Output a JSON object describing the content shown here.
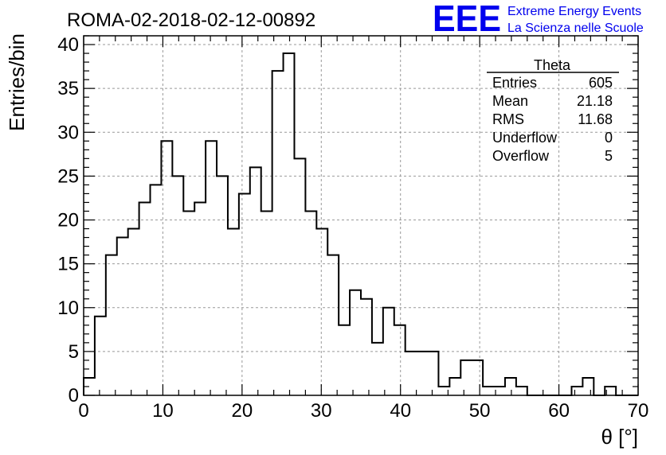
{
  "title": "ROMA-02-2018-02-12-00892",
  "logo": {
    "letters": "EEE",
    "line1": "Extreme Energy Events",
    "line2": "La Scienza nelle Scuole",
    "color": "#0000ee"
  },
  "stats": {
    "name": "Theta",
    "rows": [
      {
        "label": "Entries",
        "value": "605"
      },
      {
        "label": "Mean",
        "value": "21.18"
      },
      {
        "label": "RMS",
        "value": "11.68"
      },
      {
        "label": "Underflow",
        "value": "0"
      },
      {
        "label": "Overflow",
        "value": "5"
      }
    ]
  },
  "chart_data": {
    "type": "bar",
    "style": "step-histogram",
    "xlabel": "θ [°]",
    "ylabel": "Entries/bin",
    "xlim": [
      0,
      70
    ],
    "ylim": [
      0,
      41
    ],
    "bin_width": 1.4,
    "xticks": [
      0,
      10,
      20,
      30,
      40,
      50,
      60,
      70
    ],
    "yticks": [
      0,
      5,
      10,
      15,
      20,
      25,
      30,
      35,
      40
    ],
    "grid": true,
    "values": [
      2,
      9,
      16,
      18,
      19,
      22,
      24,
      29,
      25,
      21,
      22,
      29,
      25,
      19,
      23,
      26,
      21,
      37,
      39,
      27,
      21,
      19,
      16,
      8,
      12,
      11,
      6,
      10,
      8,
      5,
      5,
      5,
      1,
      2,
      4,
      4,
      1,
      1,
      2,
      1,
      0,
      0,
      0,
      0,
      1,
      2,
      0,
      1,
      0,
      0
    ]
  }
}
